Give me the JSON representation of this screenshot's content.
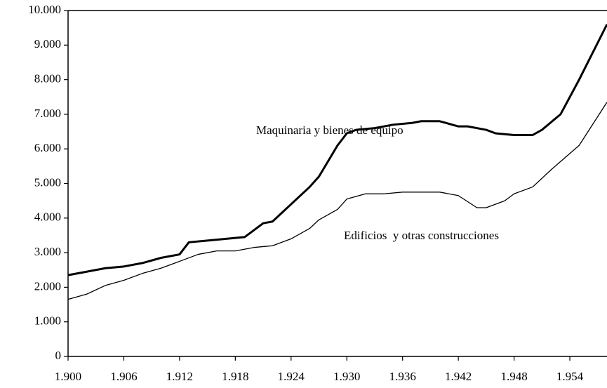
{
  "chart_data": {
    "type": "line",
    "xlim": [
      1900,
      1958
    ],
    "ylim": [
      0,
      10000
    ],
    "xticks": [
      {
        "value": 1900,
        "label": "1.900"
      },
      {
        "value": 1906,
        "label": "1.906"
      },
      {
        "value": 1912,
        "label": "1.912"
      },
      {
        "value": 1918,
        "label": "1.918"
      },
      {
        "value": 1924,
        "label": "1.924"
      },
      {
        "value": 1930,
        "label": "1.930"
      },
      {
        "value": 1936,
        "label": "1.936"
      },
      {
        "value": 1942,
        "label": "1.942"
      },
      {
        "value": 1948,
        "label": "1.948"
      },
      {
        "value": 1954,
        "label": "1.954"
      }
    ],
    "yticks": [
      0,
      {
        "value": 1000,
        "label": "1.000"
      },
      {
        "value": 2000,
        "label": "2.000"
      },
      {
        "value": 3000,
        "label": "3.000"
      },
      {
        "value": 4000,
        "label": "4.000"
      },
      {
        "value": 5000,
        "label": "5.000"
      },
      {
        "value": 6000,
        "label": "6.000"
      },
      {
        "value": 7000,
        "label": "7.000"
      },
      {
        "value": 8000,
        "label": "8.000"
      },
      {
        "value": 9000,
        "label": "9.000"
      },
      {
        "value": 10000,
        "label": "10.000"
      }
    ],
    "series": [
      {
        "name": "Maquinaria y bienes de equipo",
        "color": "#000000",
        "x": [
          1900,
          1902,
          1904,
          1906,
          1908,
          1910,
          1912,
          1913,
          1915,
          1917,
          1919,
          1921,
          1922,
          1924,
          1926,
          1927,
          1929,
          1930,
          1931,
          1933,
          1935,
          1937,
          1938,
          1940,
          1942,
          1943,
          1945,
          1946,
          1948,
          1950,
          1951,
          1953,
          1955,
          1958
        ],
        "values": [
          2350,
          2450,
          2550,
          2600,
          2700,
          2850,
          2950,
          3300,
          3350,
          3400,
          3450,
          3850,
          3900,
          4400,
          4900,
          5200,
          6100,
          6450,
          6550,
          6600,
          6700,
          6750,
          6800,
          6800,
          6650,
          6650,
          6550,
          6450,
          6400,
          6400,
          6550,
          7000,
          8000,
          9600
        ]
      },
      {
        "name": "Edificios  y otras construcciones",
        "color": "#000000",
        "x": [
          1900,
          1902,
          1904,
          1906,
          1908,
          1910,
          1912,
          1914,
          1916,
          1918,
          1920,
          1922,
          1924,
          1926,
          1927,
          1929,
          1930,
          1932,
          1934,
          1936,
          1938,
          1940,
          1942,
          1944,
          1945,
          1947,
          1948,
          1950,
          1952,
          1955,
          1958
        ],
        "values": [
          1650,
          1800,
          2050,
          2200,
          2400,
          2550,
          2750,
          2950,
          3050,
          3050,
          3150,
          3200,
          3400,
          3700,
          3950,
          4250,
          4550,
          4700,
          4700,
          4750,
          4750,
          4750,
          4650,
          4300,
          4300,
          4500,
          4700,
          4900,
          5400,
          6100,
          7350
        ]
      }
    ]
  }
}
